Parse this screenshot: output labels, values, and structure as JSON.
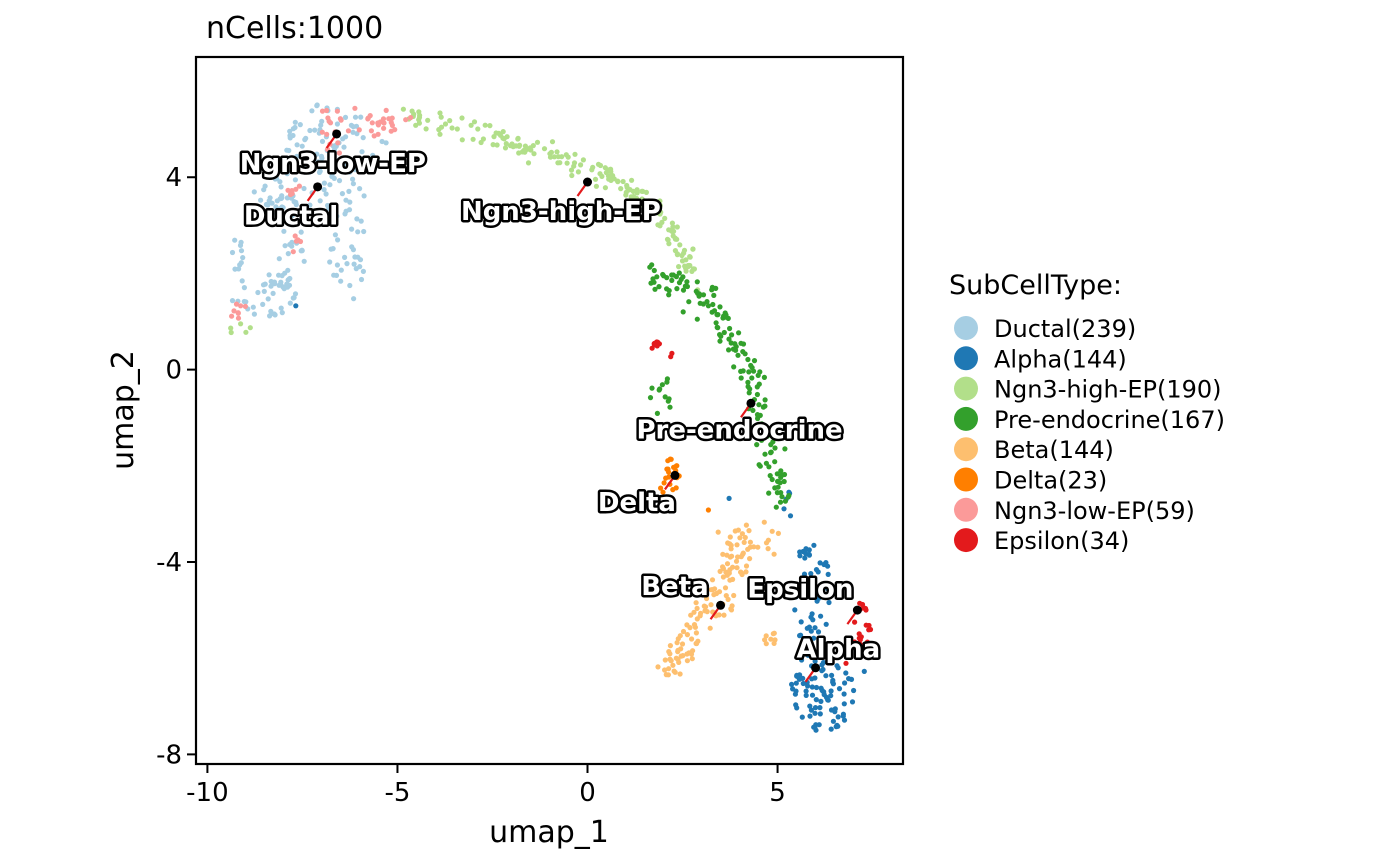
{
  "chart_data": {
    "type": "scatter",
    "title": "nCells:1000",
    "xlabel": "umap_1",
    "ylabel": "umap_2",
    "xlim": [
      -10.3,
      8.3
    ],
    "ylim": [
      -8.2,
      6.5
    ],
    "x_ticks": [
      {
        "value": -10,
        "label": "-10"
      },
      {
        "value": -5,
        "label": "-5"
      },
      {
        "value": 0,
        "label": "0"
      },
      {
        "value": 5,
        "label": "5"
      }
    ],
    "y_ticks": [
      {
        "value": -8,
        "label": "-8"
      },
      {
        "value": -4,
        "label": "-4"
      },
      {
        "value": 0,
        "label": "0"
      },
      {
        "value": 4,
        "label": "4"
      }
    ],
    "grid": false,
    "legend": {
      "title": "SubCellType:",
      "placement": "right",
      "entries": [
        {
          "label": "Ductal(239)",
          "color": "#A6CEE3"
        },
        {
          "label": "Alpha(144)",
          "color": "#1F78B4"
        },
        {
          "label": "Ngn3-high-EP(190)",
          "color": "#B2DF8A"
        },
        {
          "label": "Pre-endocrine(167)",
          "color": "#33A02C"
        },
        {
          "label": "Beta(144)",
          "color": "#FDBF6F"
        },
        {
          "label": "Delta(23)",
          "color": "#FF7F00"
        },
        {
          "label": "Ngn3-low-EP(59)",
          "color": "#FB9A99"
        },
        {
          "label": "Epsilon(34)",
          "color": "#E31A1C"
        }
      ]
    },
    "series": [
      {
        "name": "Ductal(239)",
        "color": "#A6CEE3",
        "count": 239,
        "regions": [
          {
            "shape": "ellipse",
            "cx": -6.6,
            "cy": 4.8,
            "rx": 1.4,
            "ry": 0.8,
            "n": 70
          },
          {
            "shape": "ellipse",
            "cx": -7.3,
            "cy": 3.6,
            "rx": 1.5,
            "ry": 0.6,
            "n": 55
          },
          {
            "shape": "ellipse",
            "cx": -6.3,
            "cy": 2.5,
            "rx": 0.5,
            "ry": 1.1,
            "n": 30
          },
          {
            "shape": "ellipse",
            "cx": -7.8,
            "cy": 2.3,
            "rx": 0.4,
            "ry": 0.8,
            "n": 20
          },
          {
            "shape": "ellipse",
            "cx": -8.5,
            "cy": 1.6,
            "rx": 0.9,
            "ry": 0.5,
            "n": 40
          },
          {
            "shape": "ellipse",
            "cx": -9.2,
            "cy": 2.4,
            "rx": 0.15,
            "ry": 0.4,
            "n": 10
          },
          {
            "shape": "ellipse",
            "cx": -8.2,
            "cy": 3.4,
            "rx": 0.3,
            "ry": 0.3,
            "n": 14
          }
        ]
      },
      {
        "name": "Alpha(144)",
        "color": "#1F78B4",
        "count": 144,
        "regions": [
          {
            "shape": "ellipse",
            "cx": 6.2,
            "cy": -6.7,
            "rx": 0.85,
            "ry": 0.9,
            "n": 90
          },
          {
            "shape": "ellipse",
            "cx": 5.9,
            "cy": -4.7,
            "rx": 0.5,
            "ry": 1.2,
            "n": 46
          },
          {
            "shape": "ellipse",
            "cx": 5.3,
            "cy": -2.8,
            "rx": 0.15,
            "ry": 0.3,
            "n": 5
          },
          {
            "shape": "ellipse",
            "cx": -7.7,
            "cy": 1.3,
            "rx": 0.05,
            "ry": 0.05,
            "n": 1
          },
          {
            "shape": "ellipse",
            "cx": 3.7,
            "cy": -2.7,
            "rx": 0.05,
            "ry": 0.05,
            "n": 1
          },
          {
            "shape": "ellipse",
            "cx": 7.2,
            "cy": -6.3,
            "rx": 0.1,
            "ry": 0.1,
            "n": 1
          }
        ]
      },
      {
        "name": "Ngn3-high-EP(190)",
        "color": "#B2DF8A",
        "count": 190,
        "regions": [
          {
            "shape": "path",
            "points": [
              [
                -4.8,
                5.3
              ],
              [
                -3.0,
                5.0
              ],
              [
                -1.0,
                4.5
              ],
              [
                0.6,
                4.0
              ],
              [
                1.6,
                3.5
              ],
              [
                2.4,
                2.6
              ],
              [
                2.8,
                1.9
              ]
            ],
            "spread": 0.22,
            "n": 185
          },
          {
            "shape": "ellipse",
            "cx": -9.2,
            "cy": 0.9,
            "rx": 0.4,
            "ry": 0.15,
            "n": 5
          }
        ]
      },
      {
        "name": "Pre-endocrine(167)",
        "color": "#33A02C",
        "count": 167,
        "regions": [
          {
            "shape": "path",
            "points": [
              [
                1.8,
                2.0
              ],
              [
                3.2,
                1.5
              ],
              [
                3.9,
                0.5
              ],
              [
                4.5,
                -0.7
              ],
              [
                4.8,
                -2.0
              ],
              [
                5.2,
                -2.7
              ]
            ],
            "spread": 0.3,
            "n": 150
          },
          {
            "shape": "ellipse",
            "cx": 2.0,
            "cy": -0.6,
            "rx": 0.4,
            "ry": 0.5,
            "n": 12
          },
          {
            "shape": "ellipse",
            "cx": 1.8,
            "cy": 1.8,
            "rx": 0.15,
            "ry": 0.3,
            "n": 5
          }
        ]
      },
      {
        "name": "Beta(144)",
        "color": "#FDBF6F",
        "count": 144,
        "regions": [
          {
            "shape": "path",
            "points": [
              [
                2.0,
                -6.3
              ],
              [
                2.6,
                -5.7
              ],
              [
                3.3,
                -4.8
              ],
              [
                3.8,
                -4.0
              ],
              [
                4.3,
                -3.4
              ]
            ],
            "spread": 0.35,
            "n": 130
          },
          {
            "shape": "ellipse",
            "cx": 4.8,
            "cy": -5.6,
            "rx": 0.15,
            "ry": 0.2,
            "n": 8
          },
          {
            "shape": "ellipse",
            "cx": 4.9,
            "cy": -3.6,
            "rx": 0.2,
            "ry": 0.3,
            "n": 6
          }
        ]
      },
      {
        "name": "Delta(23)",
        "color": "#FF7F00",
        "count": 23,
        "regions": [
          {
            "shape": "ellipse",
            "cx": 2.2,
            "cy": -2.2,
            "rx": 0.25,
            "ry": 0.35,
            "n": 20
          },
          {
            "shape": "ellipse",
            "cx": 3.2,
            "cy": -2.9,
            "rx": 0.05,
            "ry": 0.05,
            "n": 1
          },
          {
            "shape": "ellipse",
            "cx": 1.9,
            "cy": -2.5,
            "rx": 0.1,
            "ry": 0.1,
            "n": 2
          }
        ]
      },
      {
        "name": "Ngn3-low-EP(59)",
        "color": "#FB9A99",
        "count": 59,
        "regions": [
          {
            "shape": "ellipse",
            "cx": -5.2,
            "cy": 5.1,
            "rx": 0.7,
            "ry": 0.3,
            "n": 22
          },
          {
            "shape": "ellipse",
            "cx": -6.5,
            "cy": 5.0,
            "rx": 0.8,
            "ry": 0.5,
            "n": 18
          },
          {
            "shape": "ellipse",
            "cx": -9.1,
            "cy": 1.2,
            "rx": 0.3,
            "ry": 0.2,
            "n": 8
          },
          {
            "shape": "ellipse",
            "cx": -7.6,
            "cy": 2.5,
            "rx": 0.25,
            "ry": 0.3,
            "n": 5
          },
          {
            "shape": "ellipse",
            "cx": -7.8,
            "cy": 3.7,
            "rx": 0.3,
            "ry": 0.2,
            "n": 6
          }
        ]
      },
      {
        "name": "Epsilon(34)",
        "color": "#E31A1C",
        "count": 34,
        "regions": [
          {
            "shape": "ellipse",
            "cx": 7.2,
            "cy": -5.4,
            "rx": 0.25,
            "ry": 0.6,
            "n": 20
          },
          {
            "shape": "ellipse",
            "cx": 1.8,
            "cy": 0.5,
            "rx": 0.12,
            "ry": 0.12,
            "n": 8
          },
          {
            "shape": "ellipse",
            "cx": 2.2,
            "cy": 0.3,
            "rx": 0.05,
            "ry": 0.05,
            "n": 2
          },
          {
            "shape": "ellipse",
            "cx": 6.8,
            "cy": -6.0,
            "rx": 0.1,
            "ry": 0.15,
            "n": 4
          }
        ]
      }
    ],
    "cluster_labels": [
      {
        "text": "Ngn3-low-EP",
        "center": [
          -6.6,
          4.9
        ],
        "label_pos": [
          -6.7,
          4.3
        ]
      },
      {
        "text": "Ductal",
        "center": [
          -7.1,
          3.8
        ],
        "label_pos": [
          -7.8,
          3.2
        ]
      },
      {
        "text": "Ngn3-high-EP",
        "center": [
          0.0,
          3.9
        ],
        "label_pos": [
          -0.7,
          3.3
        ]
      },
      {
        "text": "Pre-endocrine",
        "center": [
          4.3,
          -0.7
        ],
        "label_pos": [
          4.0,
          -1.25
        ]
      },
      {
        "text": "Delta",
        "center": [
          2.3,
          -2.2
        ],
        "label_pos": [
          1.3,
          -2.75
        ]
      },
      {
        "text": "Beta",
        "center": [
          3.5,
          -4.9
        ],
        "label_pos": [
          2.3,
          -4.5
        ]
      },
      {
        "text": "Epsilon",
        "center": [
          7.1,
          -5.0
        ],
        "label_pos": [
          5.6,
          -4.55
        ]
      },
      {
        "text": "Alpha",
        "center": [
          6.0,
          -6.2
        ],
        "label_pos": [
          6.6,
          -5.8
        ]
      }
    ]
  }
}
